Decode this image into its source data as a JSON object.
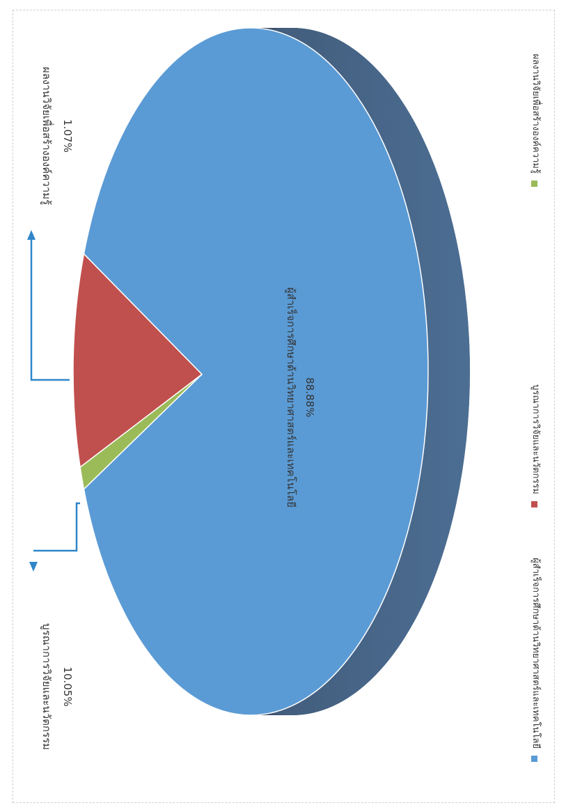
{
  "chart_data": {
    "type": "pie",
    "style": "3d",
    "categories": [
      "ผู้สำเร็จการศึกษาด้านวิทยาศาสตร์และเทคโนโลยี",
      "บูรณาการวิจัยและนวัตกรรม",
      "ผลงานวิจัยเพื่อสร้างองค์ความรู้"
    ],
    "values": [
      88.88,
      10.05,
      1.07
    ],
    "value_labels": [
      "88.88%",
      "10.05%",
      "1.07%"
    ],
    "colors": [
      "#5b9bd5",
      "#c0504d",
      "#9bbb59"
    ],
    "side_color": "#4a6585",
    "legend_position": "bottom",
    "orientation": "rotated-90-clockwise"
  }
}
